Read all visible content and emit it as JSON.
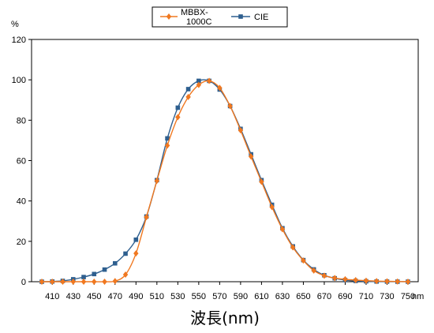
{
  "chart_data": {
    "type": "line",
    "title": "",
    "xlabel": "波長(nm)",
    "ylabel": "%",
    "x_unit": "nm",
    "xlim": [
      400,
      750
    ],
    "ylim": [
      0,
      120
    ],
    "xticks": [
      410,
      430,
      450,
      470,
      490,
      510,
      530,
      550,
      570,
      590,
      610,
      630,
      650,
      670,
      690,
      710,
      730,
      750
    ],
    "yticks": [
      0,
      20,
      40,
      60,
      80,
      100,
      120
    ],
    "grid": false,
    "legend_position": "top-center",
    "series": [
      {
        "name": "MBBX-1000C",
        "legend_lines": [
          "MBBX-",
          "1000C"
        ],
        "color": "#f07820",
        "marker": "diamond",
        "x": [
          400,
          410,
          420,
          430,
          440,
          450,
          460,
          470,
          480,
          490,
          500,
          510,
          520,
          530,
          540,
          550,
          560,
          570,
          580,
          590,
          600,
          610,
          620,
          630,
          640,
          650,
          660,
          670,
          680,
          690,
          700,
          710,
          720,
          730,
          740,
          750
        ],
        "y": [
          0,
          0,
          0,
          0,
          0,
          0,
          0,
          0.3,
          3.5,
          14,
          32,
          50,
          67.5,
          81.5,
          91.5,
          97.5,
          99.5,
          96,
          87,
          75,
          62,
          49.5,
          37,
          26,
          17,
          10.5,
          5.5,
          3,
          1.8,
          1.2,
          0.8,
          0.5,
          0.3,
          0.2,
          0.1,
          0
        ]
      },
      {
        "name": "CIE",
        "legend_lines": [
          "CIE"
        ],
        "color": "#2e5f8f",
        "marker": "square",
        "x": [
          400,
          410,
          420,
          430,
          440,
          450,
          460,
          470,
          480,
          490,
          500,
          510,
          520,
          530,
          540,
          550,
          560,
          570,
          580,
          590,
          600,
          610,
          620,
          630,
          640,
          650,
          660,
          670,
          680,
          690,
          700,
          710,
          720,
          730,
          740,
          750
        ],
        "y": [
          0,
          0.1,
          0.4,
          1.2,
          2.3,
          3.8,
          6,
          9.1,
          13.9,
          20.8,
          32.3,
          50.3,
          71,
          86.2,
          95.4,
          99.5,
          99.5,
          95.2,
          87,
          75.7,
          63.1,
          50.3,
          38.1,
          26.5,
          17.5,
          10.7,
          6.1,
          3.2,
          1.7,
          0.8,
          0.4,
          0.2,
          0.1,
          0.05,
          0.02,
          0.01
        ]
      }
    ]
  }
}
